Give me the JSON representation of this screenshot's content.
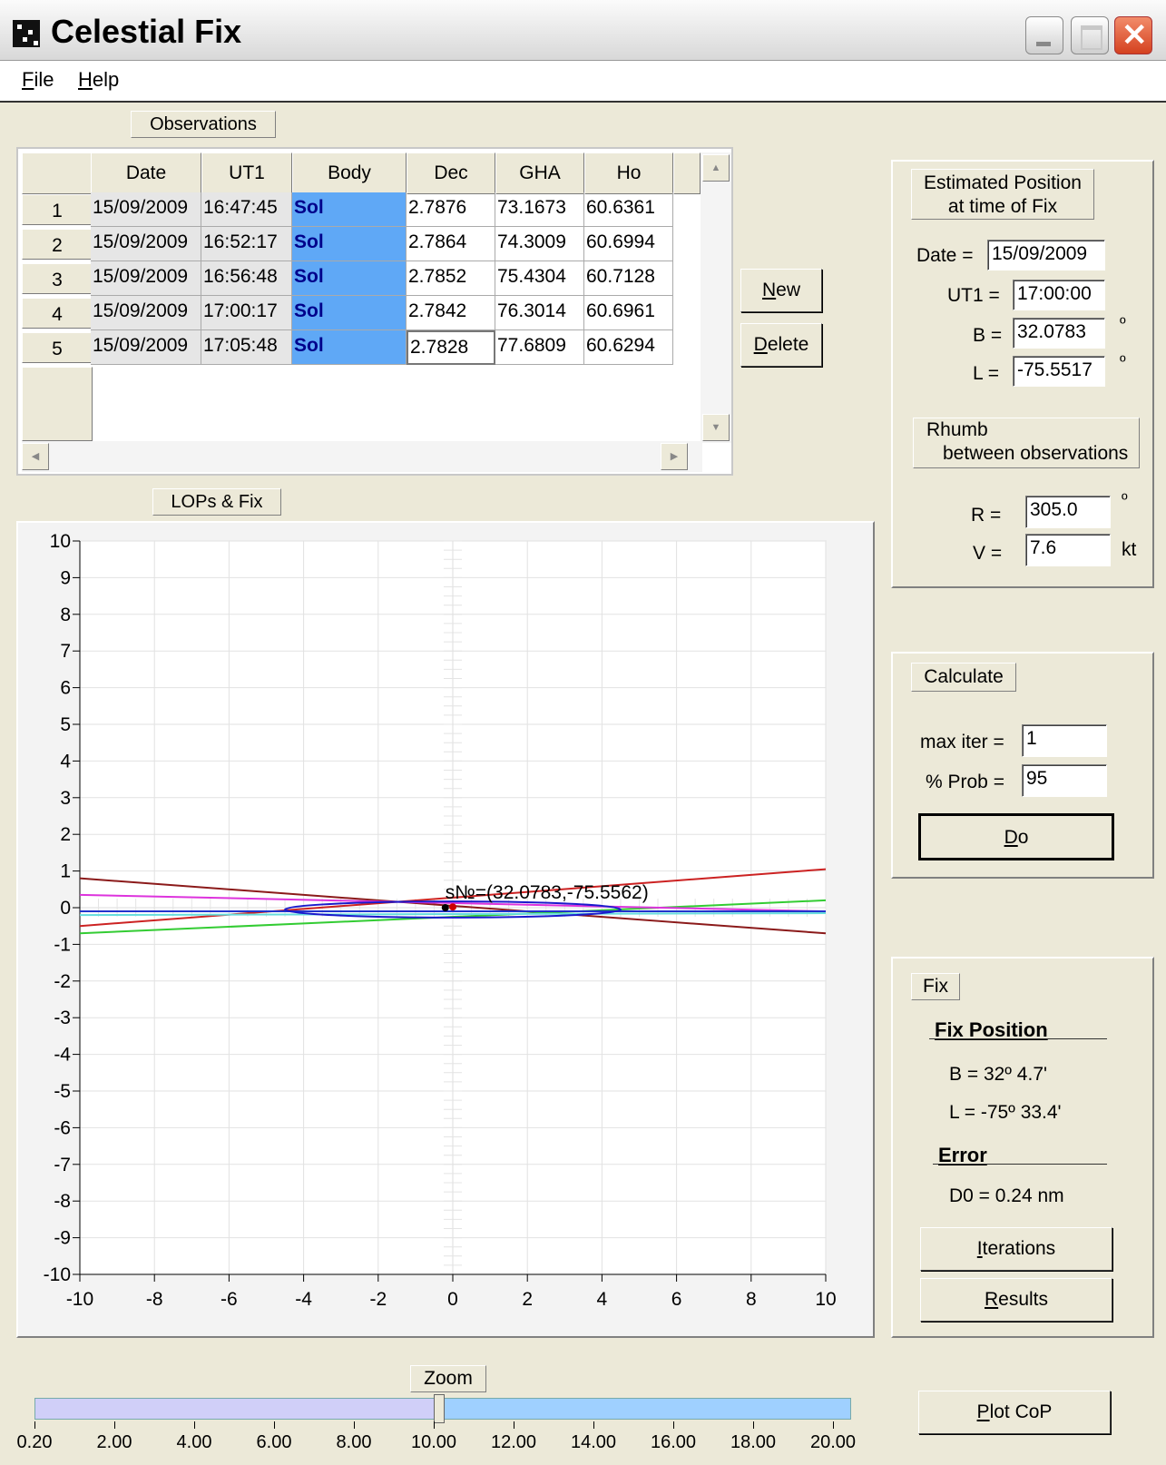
{
  "window": {
    "title": "Celestial Fix",
    "icon": "app-icon"
  },
  "menu": [
    {
      "label_pre": "",
      "accel": "F",
      "label_post": "ile"
    },
    {
      "label_pre": "",
      "accel": "H",
      "label_post": "elp"
    }
  ],
  "observations": {
    "label": "Observations",
    "columns": [
      "Date",
      "UT1",
      "Body",
      "Dec",
      "GHA",
      "Ho"
    ],
    "rows": [
      {
        "num": "1",
        "date": "15/09/2009",
        "ut1": "16:47:45",
        "body": "Sol",
        "dec": "2.7876",
        "gha": "73.1673",
        "ho": "60.6361"
      },
      {
        "num": "2",
        "date": "15/09/2009",
        "ut1": "16:52:17",
        "body": "Sol",
        "dec": "2.7864",
        "gha": "74.3009",
        "ho": "60.6994"
      },
      {
        "num": "3",
        "date": "15/09/2009",
        "ut1": "16:56:48",
        "body": "Sol",
        "dec": "2.7852",
        "gha": "75.4304",
        "ho": "60.7128"
      },
      {
        "num": "4",
        "date": "15/09/2009",
        "ut1": "17:00:17",
        "body": "Sol",
        "dec": "2.7842",
        "gha": "76.3014",
        "ho": "60.6961"
      },
      {
        "num": "5",
        "date": "15/09/2009",
        "ut1": "17:05:48",
        "body": "Sol",
        "dec": "2.7828",
        "gha": "77.6809",
        "ho": "60.6294"
      }
    ],
    "new_pre": "",
    "new_accel": "N",
    "new_post": "ew",
    "delete_pre": "",
    "delete_accel": "D",
    "delete_post": "elete"
  },
  "lops": {
    "label": "LOPs & Fix"
  },
  "chart_data": {
    "type": "line",
    "xlim": [
      -10,
      10
    ],
    "ylim": [
      -10,
      10
    ],
    "xticks": [
      "-10",
      "-8",
      "-6",
      "-4",
      "-2",
      "0",
      "2",
      "4",
      "6",
      "8",
      "10"
    ],
    "yticks": [
      "10",
      "9",
      "8",
      "7",
      "6",
      "5",
      "4",
      "3",
      "2",
      "1",
      "0",
      "-1",
      "-2",
      "-3",
      "-4",
      "-5",
      "-6",
      "-7",
      "-8",
      "-9",
      "-10"
    ],
    "grid": true,
    "series": [
      {
        "color": "#cc2222",
        "x": [
          -10,
          10
        ],
        "y": [
          -0.5,
          1.05
        ]
      },
      {
        "color": "#8b1a1a",
        "x": [
          -10,
          10
        ],
        "y": [
          0.8,
          -0.7
        ]
      },
      {
        "color": "#33cc33",
        "x": [
          -10,
          10
        ],
        "y": [
          -0.7,
          0.2
        ]
      },
      {
        "color": "#dd33dd",
        "x": [
          -10,
          10
        ],
        "y": [
          0.35,
          -0.1
        ]
      },
      {
        "color": "#66dddd",
        "x": [
          -10,
          10
        ],
        "y": [
          -0.2,
          -0.15
        ]
      },
      {
        "color": "#2233cc",
        "x": [
          -10,
          10
        ],
        "y": [
          -0.1,
          -0.1
        ]
      }
    ],
    "ellipse": {
      "color": "#1a1acc",
      "cx": 0,
      "cy": -0.05,
      "rx": 4.5,
      "ry": 0.22
    },
    "points": [
      {
        "x": -0.2,
        "y": 0.0,
        "color": "#000000"
      },
      {
        "x": 0.0,
        "y": 0.02,
        "color": "#cc0000"
      }
    ],
    "annotation": {
      "text": "s№=(32.0783,-75.5562)",
      "x": -0.2,
      "y": 0.25
    }
  },
  "zoom": {
    "label": "Zoom",
    "min": 0.2,
    "max": 20,
    "value": 10,
    "ticks": [
      "0.20",
      "2.00",
      "4.00",
      "6.00",
      "8.00",
      "10.00",
      "12.00",
      "14.00",
      "16.00",
      "18.00",
      "20.00"
    ]
  },
  "estimated": {
    "label_line1": "Estimated Position",
    "label_line2": "at time of Fix",
    "date_label": "Date =",
    "date_value": "15/09/2009",
    "ut1_label": "UT1 =",
    "ut1_value": "17:00:00",
    "b_label": "B =",
    "b_value": "32.0783",
    "b_unit": "º",
    "l_label": "L =",
    "l_value": "-75.5517",
    "l_unit": "º",
    "rhumb_line1": "Rhumb",
    "rhumb_line2": "between observations",
    "r_label": "R =",
    "r_value": "305.0",
    "r_unit": "º",
    "v_label": "V =",
    "v_value": "7.6",
    "v_unit": "kt"
  },
  "calculate": {
    "label": "Calculate",
    "maxiter_label": "max iter =",
    "maxiter_value": "1",
    "prob_label": "% Prob =",
    "prob_value": "95",
    "do_pre": "",
    "do_accel": "D",
    "do_post": "o"
  },
  "fix": {
    "label": "Fix",
    "position_title": "Fix Position",
    "b_text": "B =  32º  4.7'",
    "l_text": "L = -75º 33.4'",
    "error_title": "Error",
    "d0_text": "D0 = 0.24 nm",
    "iterations_pre": "",
    "iterations_accel": "I",
    "iterations_post": "terations",
    "results_pre": "",
    "results_accel": "R",
    "results_post": "esults"
  },
  "plotcop": {
    "pre": "",
    "accel": "P",
    "post": "lot CoP"
  }
}
